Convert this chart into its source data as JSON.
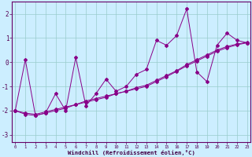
{
  "xlabel": "Windchill (Refroidissement éolien,°C)",
  "x": [
    0,
    1,
    2,
    3,
    4,
    5,
    6,
    7,
    8,
    9,
    10,
    11,
    12,
    13,
    14,
    15,
    16,
    17,
    18,
    19,
    20,
    21,
    22,
    23
  ],
  "y_main": [
    -2.0,
    0.1,
    -2.2,
    -2.1,
    -1.3,
    -2.0,
    0.2,
    -1.8,
    -1.3,
    -0.7,
    -1.2,
    -1.0,
    -0.5,
    -0.3,
    0.9,
    0.7,
    1.1,
    2.2,
    -0.4,
    -0.8,
    0.7,
    1.2,
    0.9,
    0.8
  ],
  "y_line2": [
    -2.0,
    -2.1,
    -2.15,
    -2.05,
    -1.95,
    -1.85,
    -1.75,
    -1.65,
    -1.55,
    -1.45,
    -1.3,
    -1.2,
    -1.05,
    -0.95,
    -0.75,
    -0.55,
    -0.35,
    -0.1,
    0.1,
    0.3,
    0.5,
    0.65,
    0.75,
    0.82
  ],
  "y_line3": [
    -2.0,
    -2.15,
    -2.2,
    -2.1,
    -2.0,
    -1.9,
    -1.75,
    -1.6,
    -1.5,
    -1.4,
    -1.3,
    -1.2,
    -1.1,
    -1.0,
    -0.8,
    -0.6,
    -0.38,
    -0.15,
    0.05,
    0.25,
    0.45,
    0.6,
    0.72,
    0.8
  ],
  "line_color": "#880088",
  "bg_color": "#cceeff",
  "grid_color": "#99cccc",
  "ylim": [
    -3.3,
    2.5
  ],
  "yticks": [
    -3,
    -2,
    -1,
    0,
    1,
    2
  ],
  "xlim": [
    -0.3,
    23.3
  ],
  "xticks": [
    0,
    1,
    2,
    3,
    4,
    5,
    6,
    7,
    8,
    9,
    10,
    11,
    12,
    13,
    14,
    15,
    16,
    17,
    18,
    19,
    20,
    21,
    22,
    23
  ]
}
